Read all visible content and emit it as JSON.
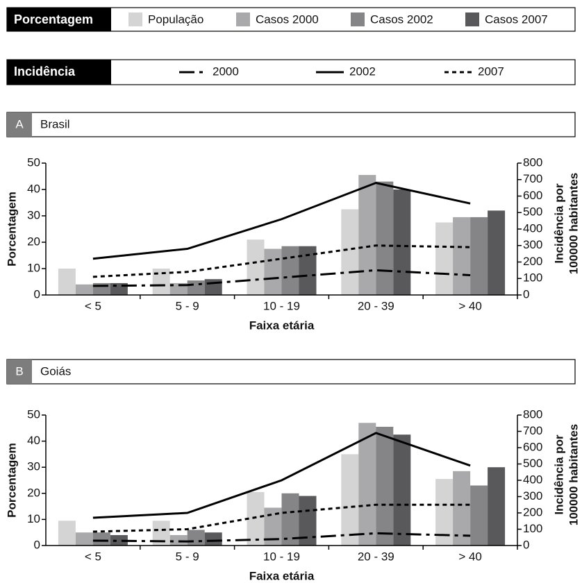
{
  "legend": {
    "bars": {
      "title": "Porcentagem",
      "names": [
        "População",
        "Casos 2000",
        "Casos 2002",
        "Casos 2007"
      ],
      "colors": [
        "#d4d4d4",
        "#a9a9ab",
        "#858587",
        "#59595b"
      ]
    },
    "lines": {
      "title": "Incidência",
      "names": [
        "2000",
        "2002",
        "2007"
      ],
      "color": "#000000",
      "dash": [
        "22 7 5 7",
        "none",
        "6 5"
      ]
    }
  },
  "chart_data": [
    {
      "type": "bar",
      "panel": "A",
      "title": "Brasil",
      "categories": [
        "< 5",
        "5 - 9",
        "10 - 19",
        "20 - 39",
        "> 40"
      ],
      "series": [
        {
          "values": [
            10,
            10,
            21,
            32.5,
            27.5
          ]
        },
        {
          "values": [
            4,
            4.5,
            17.5,
            45.5,
            29.5
          ]
        },
        {
          "values": [
            4.5,
            5.5,
            18.5,
            43,
            29.5
          ]
        },
        {
          "values": [
            4.5,
            6,
            18.5,
            40,
            32
          ]
        },
        {
          "axis": "y2",
          "values": [
            55,
            60,
            105,
            150,
            120
          ]
        },
        {
          "axis": "y2",
          "values": [
            220,
            280,
            460,
            680,
            555
          ]
        },
        {
          "axis": "y2",
          "values": [
            110,
            140,
            220,
            300,
            290
          ]
        }
      ],
      "ylim": [
        0,
        50
      ],
      "yticks": [
        0,
        10,
        20,
        30,
        40,
        50
      ],
      "y2lim": [
        0,
        800
      ],
      "y2ticks": [
        0,
        100,
        200,
        300,
        400,
        500,
        600,
        700,
        800
      ],
      "xlabel": "Faixa etária",
      "ylabel": "Porcentagem",
      "y2label": [
        "Incidência por",
        "100000 habitantes"
      ]
    },
    {
      "type": "bar",
      "panel": "B",
      "title": "Goiás",
      "categories": [
        "< 5",
        "5 - 9",
        "10 - 19",
        "20 - 39",
        "> 40"
      ],
      "series": [
        {
          "values": [
            9.5,
            9.5,
            20.5,
            35,
            25.5
          ]
        },
        {
          "values": [
            5,
            4,
            14.5,
            47,
            28.5
          ]
        },
        {
          "values": [
            5,
            6,
            20,
            45.5,
            23
          ]
        },
        {
          "values": [
            4,
            5,
            19,
            42.5,
            30
          ]
        },
        {
          "axis": "y2",
          "values": [
            30,
            25,
            40,
            75,
            60
          ]
        },
        {
          "axis": "y2",
          "values": [
            170,
            200,
            400,
            690,
            490
          ]
        },
        {
          "axis": "y2",
          "values": [
            85,
            100,
            200,
            250,
            250
          ]
        }
      ],
      "ylim": [
        0,
        50
      ],
      "yticks": [
        0,
        10,
        20,
        30,
        40,
        50
      ],
      "y2lim": [
        0,
        800
      ],
      "y2ticks": [
        0,
        100,
        200,
        300,
        400,
        500,
        600,
        700,
        800
      ],
      "xlabel": "Faixa etária",
      "ylabel": "Porcentagem",
      "y2label": [
        "Incidência por",
        "100000 habitantes"
      ]
    }
  ]
}
